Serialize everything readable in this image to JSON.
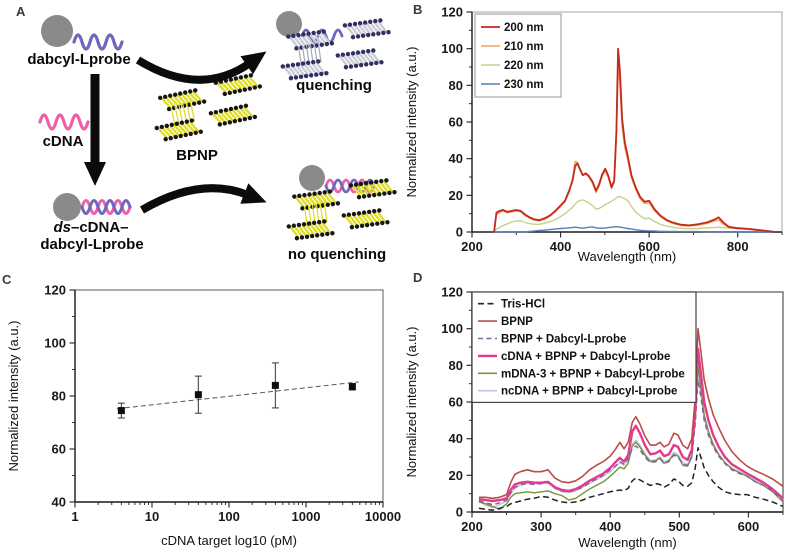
{
  "panels": {
    "a": "A",
    "b": "B",
    "c": "C",
    "d": "D"
  },
  "colors": {
    "gray": "#8a8a8a",
    "lprobe": "#6e67bd",
    "cdna": "#ef5fa8",
    "bpnp_yellow": "#e0dd28",
    "quench_sheet": "#cdcdda",
    "quench_dot": "#30305e",
    "arrow": "#0b0b0b"
  },
  "panel_a": {
    "probe_label": "dabcyl-Lprobe",
    "cdna_label": "cDNA",
    "bpnp_label": "BPNP",
    "quenching_label": "quenching",
    "ds_prefix": "ds",
    "ds_mid": "–cDNA–",
    "ds_line2": "dabcyl-Lprobe",
    "no_quenching_label": "no quenching"
  },
  "chart_data": [
    {
      "id": "B",
      "type": "line",
      "xlabel": "Wavelength (nm)",
      "ylabel": "Normalized intensity (a.u.)",
      "xlim": [
        200,
        900
      ],
      "ylim": [
        0,
        120
      ],
      "xticks": [
        200,
        400,
        600,
        800
      ],
      "yticks": [
        0,
        20,
        40,
        60,
        80,
        100,
        120
      ],
      "legend_show": true,
      "legend_position": "top-left",
      "grid": false,
      "frame": "#b3b3b3",
      "x": [
        250,
        255,
        262,
        270,
        280,
        290,
        300,
        310,
        320,
        330,
        340,
        352,
        364,
        376,
        388,
        400,
        410,
        420,
        427,
        433,
        438,
        444,
        450,
        457,
        464,
        472,
        480,
        487,
        494,
        501,
        508,
        515,
        521,
        526,
        530,
        534,
        539,
        545,
        552,
        560,
        570,
        580,
        590,
        600,
        612,
        625,
        640,
        655,
        672,
        690,
        710,
        730,
        748,
        757,
        766,
        780,
        800,
        825,
        850,
        880
      ],
      "series": [
        {
          "name": "200 nm",
          "color": "#c32a1e",
          "width": 1.8,
          "z": 4,
          "y": [
            0,
            10.5,
            11.5,
            12,
            11,
            11.5,
            12,
            11.5,
            9.5,
            8,
            7,
            6.5,
            7.5,
            9,
            11.5,
            14.5,
            17,
            23,
            28,
            36,
            37.5,
            34,
            31,
            32,
            30.5,
            27.5,
            22.5,
            26,
            31.5,
            34.5,
            30.5,
            24.5,
            28,
            55,
            100,
            88,
            62,
            49,
            41,
            31,
            24,
            19,
            16.5,
            17,
            12.5,
            9,
            6.5,
            5,
            4,
            3.6,
            4.2,
            5.2,
            6.8,
            8,
            5.5,
            2.8,
            2.1,
            1.7,
            1,
            0.2
          ]
        },
        {
          "name": "210 nm",
          "color": "#f2a25c",
          "width": 1.4,
          "z": 3,
          "y": [
            0,
            9.5,
            10.5,
            11.5,
            10.5,
            11,
            11.5,
            11,
            9,
            7.5,
            6.5,
            6,
            7,
            8.5,
            11,
            14,
            16.5,
            22,
            29,
            38.5,
            38,
            34.5,
            31,
            31.5,
            30,
            26.5,
            21.5,
            25,
            30.5,
            33.5,
            29.5,
            23.5,
            27,
            52,
            90,
            81,
            57,
            46,
            39,
            29.5,
            23,
            18,
            15.5,
            16,
            11.5,
            8.5,
            6,
            4.6,
            3.6,
            3.2,
            3.8,
            4.6,
            6,
            6.6,
            4.5,
            2.4,
            1.8,
            1.4,
            0.8,
            0.1
          ]
        },
        {
          "name": "220 nm",
          "color": "#c9cf8e",
          "width": 1.4,
          "z": 1,
          "y": [
            0,
            1.5,
            2.5,
            3.5,
            4.5,
            5.5,
            6,
            6,
            5.2,
            4.6,
            4.2,
            4.2,
            4.8,
            5.6,
            6.8,
            8.4,
            10,
            12,
            13.5,
            15.2,
            16.5,
            17.2,
            17.5,
            16.8,
            15.8,
            14.4,
            12.6,
            12.8,
            13.8,
            15,
            15.8,
            16.8,
            17.8,
            18.6,
            19.4,
            19.2,
            18.8,
            18.2,
            17,
            14,
            10.8,
            8.8,
            7.2,
            7.6,
            5.8,
            4.2,
            3.2,
            2.5,
            2,
            1.8,
            1.9,
            2.2,
            2.5,
            2.6,
            2.4,
            2.1,
            2,
            1.4,
            0.8,
            0.2
          ]
        },
        {
          "name": "230 nm",
          "color": "#4f81bd",
          "width": 1.4,
          "z": 2,
          "y": [
            0,
            0,
            0,
            0,
            0,
            0,
            0,
            0,
            0.1,
            0.3,
            0.5,
            0.8,
            1,
            1.3,
            1.6,
            1.9,
            2.1,
            2.3,
            2.4,
            2.6,
            2.5,
            2.3,
            2.1,
            2.3,
            2.6,
            2.8,
            2.3,
            2.1,
            2.1,
            2.2,
            2.4,
            2.6,
            2.8,
            2.9,
            2.8,
            2.7,
            2.5,
            2.2,
            1.9,
            1.6,
            1.2,
            0.9,
            0.7,
            0.6,
            0.5,
            0.4,
            0.3,
            0.3,
            0.2,
            0.2,
            0.2,
            0.1,
            0.1,
            0.1,
            0.1,
            0.1,
            0,
            0,
            0,
            0
          ]
        }
      ]
    },
    {
      "id": "C",
      "type": "scatter",
      "xlabel": "cDNA target log10 (pM)",
      "ylabel": "Normalized intensity (a.u.)",
      "xscale": "log",
      "xlim": [
        1,
        10000
      ],
      "ylim": [
        40,
        120
      ],
      "xticks": [
        1,
        10,
        100,
        1000,
        10000
      ],
      "yticks": [
        40,
        60,
        80,
        100,
        120
      ],
      "legend_show": false,
      "grid": false,
      "frame": "#777777",
      "marker": "square",
      "points": [
        {
          "x": 4,
          "y": 74.5,
          "err": 2.8
        },
        {
          "x": 40,
          "y": 80.5,
          "err": 7
        },
        {
          "x": 400,
          "y": 84,
          "err": 8.5
        },
        {
          "x": 4000,
          "y": 83.5,
          "err": 1.2
        }
      ],
      "trend": {
        "x": [
          3.5,
          4800
        ],
        "y": [
          75.2,
          85.3
        ],
        "style": "dashed"
      }
    },
    {
      "id": "D",
      "type": "line",
      "xlabel": "Wavelength (nm)",
      "ylabel": "Normalized intensity (a.u.)",
      "xlim": [
        200,
        650
      ],
      "ylim": [
        0,
        120
      ],
      "xticks": [
        200,
        300,
        400,
        500,
        600
      ],
      "yticks": [
        0,
        20,
        40,
        60,
        80,
        100,
        120
      ],
      "legend_show": true,
      "legend_position": "top-left",
      "grid": false,
      "frame": "#555555",
      "x": [
        210,
        220,
        230,
        240,
        250,
        256,
        262,
        270,
        280,
        290,
        300,
        310,
        320,
        330,
        340,
        350,
        360,
        370,
        380,
        390,
        400,
        407,
        414,
        420,
        426,
        432,
        437,
        443,
        450,
        458,
        466,
        472,
        478,
        485,
        492,
        498,
        505,
        512,
        518,
        523,
        527,
        531,
        536,
        542,
        549,
        557,
        566,
        576,
        587,
        598,
        610,
        622,
        635,
        650
      ],
      "series": [
        {
          "name": "Tris-HCl",
          "color": "#222222",
          "width": 1.5,
          "dash": "6 3.5",
          "z": 4,
          "y": [
            2,
            1.5,
            1,
            2,
            3,
            4.5,
            5.2,
            6,
            7,
            7.5,
            8.5,
            8,
            6.5,
            5.5,
            5,
            5.5,
            6.5,
            8,
            9,
            10,
            11,
            11.5,
            12,
            11.5,
            13,
            17,
            18.5,
            17.5,
            16,
            14.5,
            15.5,
            15,
            13.5,
            15,
            18,
            17,
            14.5,
            14,
            16,
            24,
            35,
            30,
            24,
            20,
            16.5,
            13.5,
            11,
            10,
            9.5,
            9.5,
            8,
            7,
            5.5,
            3
          ]
        },
        {
          "name": "BPNP",
          "color": "#bf4a47",
          "width": 1.6,
          "z": 6,
          "y": [
            8,
            8,
            7.5,
            8,
            9.5,
            16,
            20.5,
            22,
            23,
            22,
            22,
            23,
            18.5,
            16.5,
            16,
            17,
            19.5,
            23,
            25.5,
            27.5,
            30.5,
            34,
            38,
            34.5,
            38,
            49,
            52,
            48,
            41.5,
            36.5,
            36.5,
            38,
            35.5,
            37,
            43,
            42,
            36.5,
            34.5,
            40,
            62,
            100,
            88,
            72,
            62,
            53,
            46,
            39,
            33,
            28.5,
            25,
            22.5,
            20.5,
            18,
            14
          ]
        },
        {
          "name": "BPNP + Dabcyl-Lprobe",
          "color": "#8064a2",
          "width": 1.5,
          "dash": "5 3.5",
          "z": 3,
          "y": [
            6,
            5,
            4,
            5,
            6.5,
            10.5,
            13.5,
            15,
            15.5,
            15,
            15.5,
            16,
            13,
            11.5,
            11,
            12,
            13.5,
            16,
            18,
            20,
            23,
            25,
            27.5,
            26,
            29,
            34.5,
            36,
            34,
            30,
            27,
            27.5,
            29,
            26.5,
            27.5,
            31,
            30,
            26,
            25.5,
            30,
            48,
            72,
            63,
            50,
            42,
            35.5,
            30.5,
            26.5,
            23,
            21,
            19.5,
            16.5,
            14.5,
            11.5,
            6
          ]
        },
        {
          "name": "cDNA + BPNP + Dabcyl-Lprobe",
          "color": "#e23a8e",
          "width": 2.4,
          "z": 5,
          "y": [
            7,
            6.5,
            6,
            6.5,
            7.5,
            12,
            15,
            16,
            16.5,
            16,
            16,
            16.5,
            13.5,
            12,
            11.5,
            12.5,
            14.5,
            17,
            19,
            21,
            24,
            27,
            29.5,
            27.5,
            31,
            44,
            47,
            43,
            36.5,
            31.5,
            32,
            33.5,
            30.5,
            31.5,
            36.5,
            35.5,
            30,
            28.5,
            34,
            55,
            89,
            76,
            60,
            50,
            42,
            35.5,
            30,
            26,
            23.5,
            21,
            18.5,
            16,
            12.5,
            7.5
          ]
        },
        {
          "name": "mDNA-3 + BPNP + Dabcyl-Lprobe",
          "color": "#77933c",
          "width": 1.4,
          "z": 2,
          "y": [
            5.5,
            4.5,
            3,
            1.5,
            4.5,
            8,
            10,
            10.5,
            11,
            10.5,
            11,
            11.5,
            10,
            9,
            6.5,
            7.5,
            10,
            12.5,
            14.5,
            16.5,
            19.5,
            22,
            24.5,
            23.5,
            26.5,
            36,
            38,
            35.5,
            31,
            27.5,
            28,
            29.5,
            26.5,
            28,
            31.5,
            30.5,
            25.5,
            25,
            30,
            53,
            80,
            68,
            53,
            44,
            37,
            31.5,
            27,
            23.5,
            21.5,
            19.5,
            16.5,
            14.5,
            11,
            5.5
          ]
        },
        {
          "name": "ncDNA + BPNP + Dabcyl-Lprobe",
          "color": "#bcc6d8",
          "width": 1.4,
          "z": 1,
          "y": [
            6,
            3.5,
            2.5,
            4,
            6,
            10,
            13,
            14.5,
            15.5,
            15.5,
            15.5,
            16,
            13,
            11,
            10.5,
            11.5,
            13.5,
            15.5,
            17.5,
            19.5,
            22,
            24.5,
            27,
            25.5,
            28.5,
            37,
            39,
            36.5,
            32,
            28,
            28.5,
            30,
            27.5,
            28.5,
            32.5,
            31.5,
            27,
            26,
            31,
            50,
            75,
            65,
            51,
            43,
            36,
            31,
            27,
            24,
            22,
            20,
            17.5,
            15.5,
            12,
            6.5
          ]
        }
      ]
    }
  ]
}
